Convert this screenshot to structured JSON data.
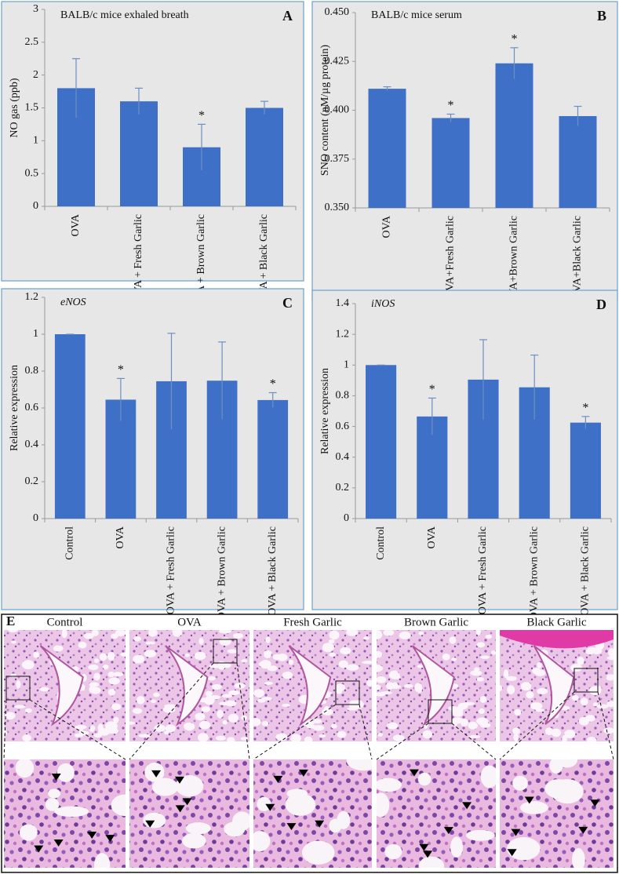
{
  "chart_data": [
    {
      "type": "bar",
      "panel_label": "A",
      "title": "BALB/c mice exhaled breath",
      "y_label": "NO gas (ppb)",
      "categories": [
        "OVA",
        "OVA + Fresh Garlic",
        "OVA + Brown Garlic",
        "OVA + Black Garlic"
      ],
      "values": [
        1.8,
        1.6,
        0.9,
        1.5
      ],
      "errors": [
        0.45,
        0.2,
        0.35,
        0.1
      ],
      "markers": [
        null,
        null,
        "*",
        null
      ],
      "color": "#3f70c8",
      "ylim": [
        0,
        3
      ],
      "yticks": [
        0,
        0.5,
        1,
        1.5,
        2,
        2.5,
        3
      ]
    },
    {
      "type": "bar",
      "panel_label": "B",
      "title": "BALB/c mice serum",
      "y_label": "SNO content (nM/µg protein)",
      "categories": [
        "OVA",
        "OVA+Fresh Garlic",
        "OVA+Brown Garlic",
        "OVA+Black Garlic"
      ],
      "values": [
        0.411,
        0.396,
        0.424,
        0.397
      ],
      "errors": [
        0.001,
        0.002,
        0.008,
        0.005
      ],
      "markers": [
        null,
        "*",
        "*",
        null
      ],
      "color": "#3f70c8",
      "ylim": [
        0.35,
        0.45
      ],
      "yticks": [
        {
          "value": 0.35,
          "label": "0.350"
        },
        {
          "value": 0.375,
          "label": "0.375"
        },
        {
          "value": 0.4,
          "label": "0.400"
        },
        {
          "value": 0.425,
          "label": "0.425"
        },
        {
          "value": 0.45,
          "label": "0.450"
        }
      ]
    },
    {
      "type": "bar",
      "panel_label": "C",
      "title": "eNOS",
      "title_italic": true,
      "y_label": "Relative expression",
      "categories": [
        "Control",
        "OVA",
        "OVA + Fresh Garlic",
        "OVA + Brown Garlic",
        "OVA + Black Garlic"
      ],
      "values": [
        1.0,
        0.645,
        0.745,
        0.748,
        0.643
      ],
      "errors": [
        0,
        0.115,
        0.26,
        0.21,
        0.04
      ],
      "markers": [
        null,
        "*",
        null,
        null,
        "*"
      ],
      "color": "#3f70c8",
      "ylim": [
        0,
        1.2
      ],
      "yticks": [
        0,
        0.2,
        0.4,
        0.6,
        0.8,
        1,
        1.2
      ]
    },
    {
      "type": "bar",
      "panel_label": "D",
      "title": "iNOS",
      "title_italic": true,
      "y_label": "Relative expression",
      "categories": [
        "Control",
        "OVA",
        "OVA + Fresh Garlic",
        "OVA + Brown Garlic",
        "OVA + Black Garlic"
      ],
      "values": [
        1.0,
        0.665,
        0.905,
        0.855,
        0.625
      ],
      "errors": [
        0,
        0.12,
        0.26,
        0.21,
        0.04
      ],
      "markers": [
        null,
        "*",
        null,
        null,
        "*"
      ],
      "color": "#3f70c8",
      "ylim": [
        0,
        1.4
      ],
      "yticks": [
        0,
        0.2,
        0.4,
        0.6,
        0.8,
        1,
        1.2,
        1.4
      ]
    }
  ],
  "panel_e": {
    "label": "E",
    "columns": [
      "Control",
      "OVA",
      "Fresh Garlic",
      "Brown Garlic",
      "Black Garlic"
    ]
  }
}
